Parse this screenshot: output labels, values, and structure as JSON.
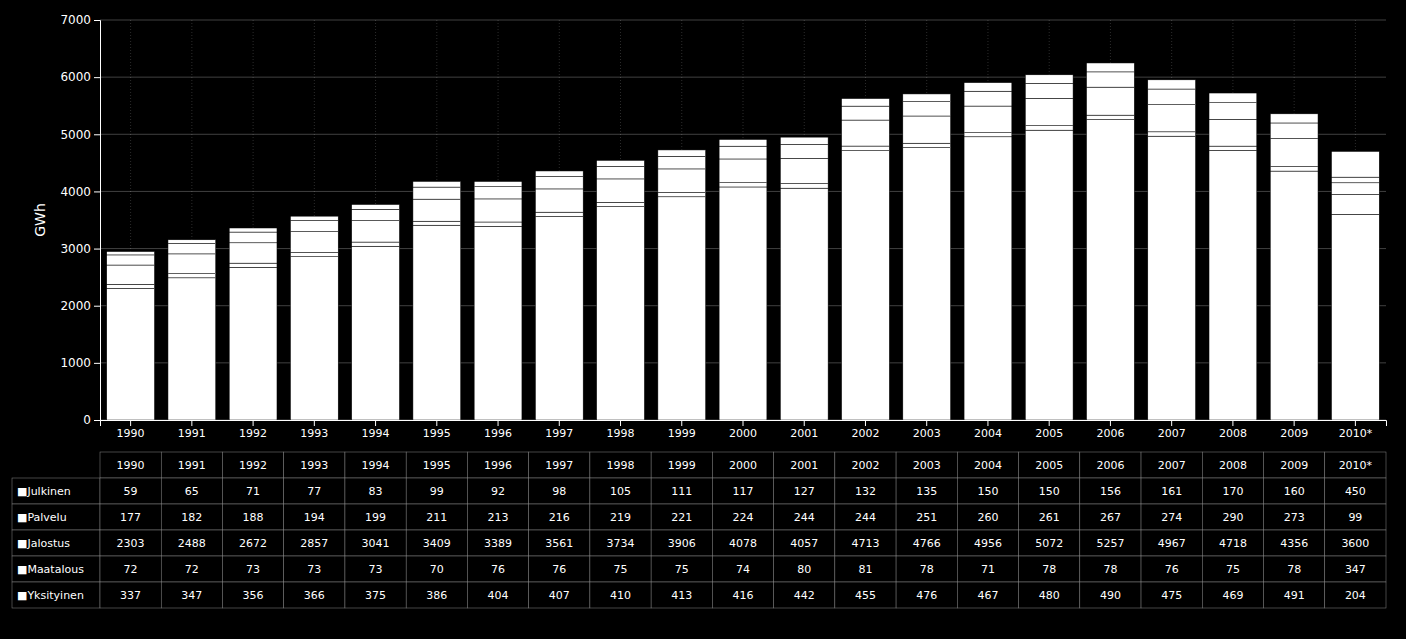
{
  "chart_data": {
    "type": "bar",
    "stacked": true,
    "grid": true,
    "y_label": "GWh",
    "categories": [
      "1990",
      "1991",
      "1992",
      "1993",
      "1994",
      "1995",
      "1996",
      "1997",
      "1998",
      "1999",
      "2000",
      "2001",
      "2002",
      "2003",
      "2004",
      "2005",
      "2006",
      "2007",
      "2008",
      "2009",
      "2010*"
    ],
    "series": [
      {
        "name": "■Jalostus",
        "color": "#ffffff",
        "values": [
          2303,
          2488,
          2672,
          2857,
          3041,
          3409,
          3389,
          3561,
          3734,
          3906,
          4078,
          4057,
          4713,
          4766,
          4956,
          5072,
          5257,
          4967,
          4718,
          4356,
          3600
        ]
      },
      {
        "name": "■Maatalous",
        "color": "#ffffff",
        "values": [
          72,
          72,
          73,
          73,
          73,
          70,
          76,
          76,
          75,
          75,
          74,
          80,
          81,
          78,
          71,
          78,
          78,
          76,
          75,
          78,
          347
        ]
      },
      {
        "name": "■Yksityinen",
        "color": "#ffffff",
        "values": [
          337,
          347,
          356,
          366,
          375,
          386,
          404,
          407,
          410,
          413,
          416,
          442,
          455,
          476,
          467,
          480,
          490,
          475,
          469,
          491,
          204
        ]
      },
      {
        "name": "■Palvelu",
        "color": "#ffffff",
        "values": [
          177,
          182,
          188,
          194,
          199,
          211,
          213,
          216,
          219,
          221,
          224,
          244,
          244,
          251,
          260,
          261,
          267,
          274,
          290,
          273,
          99
        ]
      },
      {
        "name": "■Julkinen",
        "color": "#ffffff",
        "values": [
          59,
          65,
          71,
          77,
          83,
          99,
          92,
          98,
          105,
          111,
          117,
          127,
          132,
          135,
          150,
          150,
          156,
          161,
          170,
          160,
          450
        ]
      }
    ],
    "table_rows": [
      "■Julkinen",
      "■Palvelu",
      "■Jalostus",
      "■Maatalous",
      "■Yksityinen"
    ],
    "ylim": [
      0,
      7000
    ],
    "yticks": [
      0,
      1000,
      2000,
      3000,
      4000,
      5000,
      6000,
      7000
    ]
  }
}
